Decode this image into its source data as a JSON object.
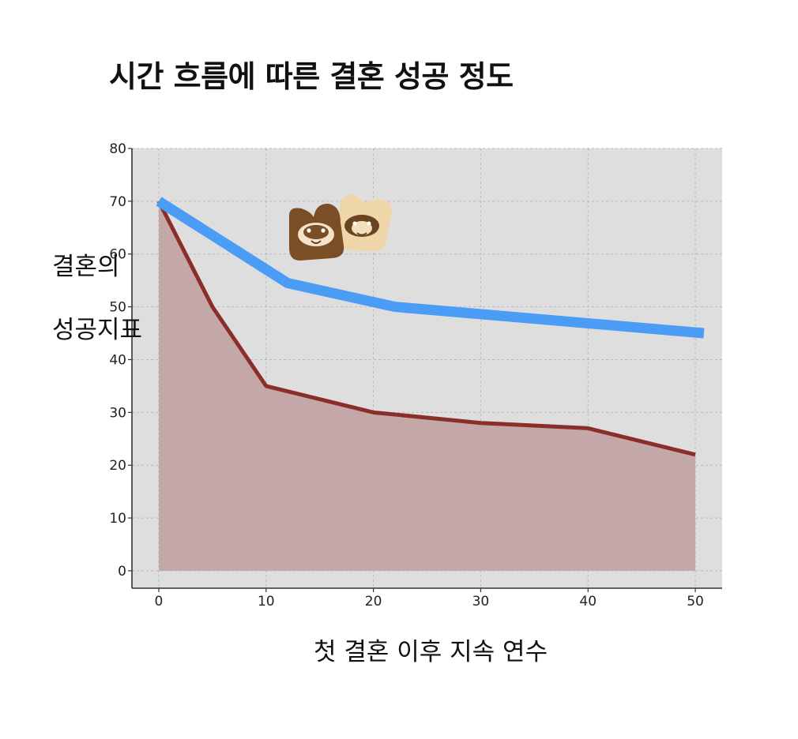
{
  "chart_data": {
    "type": "line",
    "title": "시간 흐름에 따른 결혼 성공 정도",
    "xlabel": "첫 결혼 이후 지속 연수",
    "ylabel": "결혼의\n\n성공지표",
    "xlim": [
      -2.5,
      52.5
    ],
    "ylim": [
      -3.3,
      80
    ],
    "xticks": [
      0,
      10,
      20,
      30,
      40,
      50
    ],
    "yticks": [
      0,
      10,
      20,
      30,
      40,
      50,
      60,
      70,
      80
    ],
    "grid": true,
    "series": [
      {
        "style": "filled-area",
        "color": "#8b2e2a",
        "fill": "#c4a7a7",
        "x": [
          0,
          5,
          10,
          20,
          30,
          40,
          50
        ],
        "y": [
          70,
          50,
          35,
          30,
          28,
          27,
          22
        ]
      },
      {
        "style": "thick-line",
        "color": "#4b9cf5",
        "x": [
          0,
          12,
          22,
          50.8
        ],
        "y": [
          70,
          54.5,
          50,
          45
        ]
      }
    ],
    "decoration": "two-character-mascot-icons"
  }
}
